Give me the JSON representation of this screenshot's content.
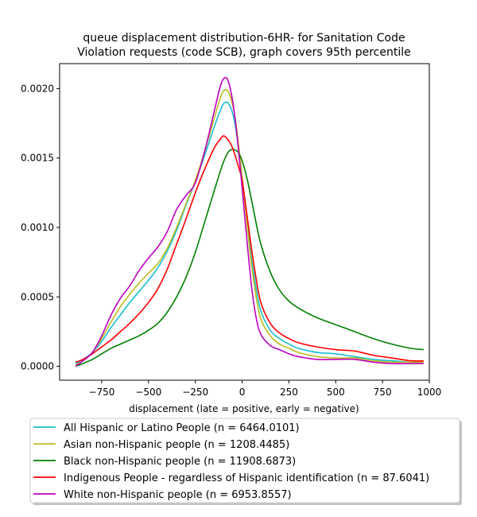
{
  "chart_data": {
    "type": "line",
    "title": "queue displacement distribution-6HR-  for Sanitation Code\nViolation  requests (code SCB), graph covers 95th percentile",
    "xlabel": "displacement (late = positive, early = negative)",
    "ylabel": "",
    "xlim": [
      -975,
      1000
    ],
    "ylim": [
      -0.0001,
      0.00218
    ],
    "xticks": [
      -750,
      -500,
      -250,
      0,
      250,
      500,
      750,
      1000
    ],
    "xtick_labels": [
      "−750",
      "−500",
      "−250",
      "0",
      "250",
      "500",
      "750",
      "1000"
    ],
    "yticks": [
      0.0,
      0.0005,
      0.001,
      0.0015,
      0.002
    ],
    "ytick_labels": [
      "0.0000",
      "0.0005",
      "0.0010",
      "0.0015",
      "0.0020"
    ],
    "grid": false,
    "legend_placement": "below",
    "series": [
      {
        "name": "All Hispanic or Latino People (n = 6464.0101)",
        "color": "#17becf",
        "x": [
          -890,
          -850,
          -800,
          -750,
          -700,
          -650,
          -600,
          -550,
          -500,
          -450,
          -400,
          -350,
          -300,
          -250,
          -200,
          -150,
          -120,
          -100,
          -80,
          -60,
          -40,
          -20,
          0,
          25,
          50,
          75,
          100,
          150,
          200,
          250,
          300,
          400,
          500,
          600,
          700,
          800,
          900,
          970
        ],
        "y": [
          2e-05,
          5e-05,
          0.0001,
          0.00018,
          0.00028,
          0.00037,
          0.00046,
          0.00054,
          0.00062,
          0.00071,
          0.00083,
          0.00098,
          0.00116,
          0.00133,
          0.00152,
          0.00172,
          0.00183,
          0.00189,
          0.0019,
          0.00186,
          0.00176,
          0.00158,
          0.00135,
          0.00106,
          0.00078,
          0.00056,
          0.0004,
          0.00026,
          0.0002,
          0.00016,
          0.00013,
          0.0001,
          9e-05,
          7e-05,
          5e-05,
          4e-05,
          3e-05,
          3e-05
        ]
      },
      {
        "name": "Asian non-Hispanic people (n = 1208.4485)",
        "color": "#bcbd22",
        "x": [
          -890,
          -850,
          -800,
          -750,
          -700,
          -650,
          -600,
          -550,
          -500,
          -450,
          -400,
          -350,
          -300,
          -250,
          -200,
          -150,
          -120,
          -100,
          -80,
          -60,
          -40,
          -20,
          0,
          25,
          50,
          75,
          100,
          150,
          200,
          250,
          300,
          400,
          500,
          600,
          700,
          800,
          900,
          970
        ],
        "y": [
          1e-05,
          4e-05,
          0.0001,
          0.0002,
          0.00032,
          0.00043,
          0.00052,
          0.0006,
          0.00067,
          0.00074,
          0.00085,
          0.001,
          0.00117,
          0.00134,
          0.00155,
          0.00178,
          0.00192,
          0.00198,
          0.00199,
          0.00193,
          0.00181,
          0.00161,
          0.00137,
          0.00104,
          0.00073,
          0.0005,
          0.00034,
          0.00022,
          0.00016,
          0.00013,
          0.0001,
          7e-05,
          6e-05,
          6e-05,
          4e-05,
          3e-05,
          3e-05,
          3e-05
        ]
      },
      {
        "name": "Black non-Hispanic people (n = 11908.6873)",
        "color": "#008000",
        "x": [
          -890,
          -850,
          -800,
          -750,
          -700,
          -650,
          -600,
          -550,
          -500,
          -450,
          -400,
          -350,
          -300,
          -250,
          -200,
          -150,
          -120,
          -100,
          -80,
          -60,
          -40,
          -20,
          0,
          25,
          50,
          75,
          100,
          150,
          200,
          250,
          300,
          400,
          500,
          600,
          700,
          800,
          900,
          970
        ],
        "y": [
          0.0,
          2e-05,
          5e-05,
          9e-05,
          0.00013,
          0.00016,
          0.00019,
          0.00022,
          0.00026,
          0.00031,
          0.00039,
          0.0005,
          0.00064,
          0.00082,
          0.00104,
          0.00126,
          0.00139,
          0.00147,
          0.00153,
          0.00156,
          0.00156,
          0.00154,
          0.00148,
          0.00136,
          0.0012,
          0.00103,
          0.00088,
          0.00068,
          0.00055,
          0.00047,
          0.00042,
          0.00035,
          0.0003,
          0.00025,
          0.0002,
          0.00016,
          0.00013,
          0.00012
        ]
      },
      {
        "name": "Indigenous People - regardless of Hispanic identification (n = 87.6041)",
        "color": "#ff0000",
        "x": [
          -890,
          -850,
          -800,
          -750,
          -700,
          -650,
          -600,
          -550,
          -500,
          -450,
          -400,
          -350,
          -300,
          -250,
          -200,
          -150,
          -120,
          -100,
          -80,
          -60,
          -40,
          -20,
          0,
          25,
          50,
          75,
          100,
          150,
          200,
          250,
          300,
          400,
          500,
          600,
          700,
          800,
          900,
          970
        ],
        "y": [
          3e-05,
          5e-05,
          9e-05,
          0.00014,
          0.00019,
          0.00025,
          0.00031,
          0.00038,
          0.00046,
          0.00056,
          0.0007,
          0.00088,
          0.00106,
          0.00125,
          0.00142,
          0.00157,
          0.00163,
          0.00166,
          0.00164,
          0.0016,
          0.00153,
          0.00144,
          0.00134,
          0.0011,
          0.00085,
          0.00063,
          0.00046,
          0.00031,
          0.00024,
          0.0002,
          0.00017,
          0.00014,
          0.00012,
          0.00011,
          8e-05,
          6e-05,
          4e-05,
          4e-05
        ]
      },
      {
        "name": "White non-Hispanic people (n = 6953.8557)",
        "color": "#bf00bf",
        "x": [
          -890,
          -850,
          -800,
          -750,
          -700,
          -650,
          -600,
          -550,
          -500,
          -450,
          -400,
          -350,
          -300,
          -250,
          -200,
          -150,
          -120,
          -100,
          -80,
          -60,
          -40,
          -20,
          0,
          25,
          50,
          75,
          100,
          150,
          200,
          250,
          300,
          400,
          500,
          600,
          700,
          800,
          900,
          970
        ],
        "y": [
          0.0,
          4e-05,
          0.0001,
          0.00022,
          0.00037,
          0.00049,
          0.00058,
          0.00069,
          0.00078,
          0.00086,
          0.00097,
          0.00113,
          0.00123,
          0.00132,
          0.00155,
          0.00183,
          0.002,
          0.00207,
          0.00207,
          0.00198,
          0.00181,
          0.00157,
          0.00128,
          0.00092,
          0.00058,
          0.00035,
          0.00023,
          0.00015,
          0.00012,
          9e-05,
          7e-05,
          5e-05,
          5e-05,
          5e-05,
          3e-05,
          2e-05,
          2e-05,
          2e-05
        ]
      }
    ]
  }
}
